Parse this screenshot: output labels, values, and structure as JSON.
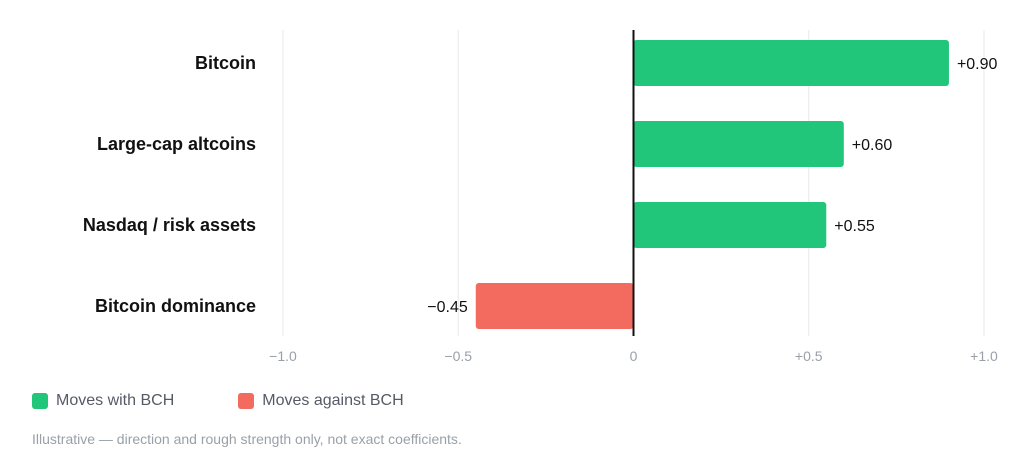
{
  "chart_data": {
    "type": "bar",
    "orientation": "horizontal",
    "categories": [
      "Bitcoin",
      "Large-cap altcoins",
      "Nasdaq / risk assets",
      "Bitcoin dominance"
    ],
    "values": [
      0.9,
      0.6,
      0.55,
      -0.45
    ],
    "value_labels": [
      "+0.90",
      "+0.60",
      "+0.55",
      "−0.45"
    ],
    "xlim": [
      -1.0,
      1.0
    ],
    "xticks": [
      -1.0,
      -0.5,
      0,
      0.5,
      1.0
    ],
    "xtick_labels": [
      "−1.0",
      "−0.5",
      "0",
      "+0.5",
      "+1.0"
    ],
    "grid": true,
    "colors": {
      "positive": "#22c67a",
      "negative": "#f26b5e"
    },
    "legend": [
      {
        "label": "Moves with BCH",
        "color": "#22c67a"
      },
      {
        "label": "Moves against BCH",
        "color": "#f26b5e"
      }
    ],
    "legend_position": "bottom-left"
  },
  "footnote": "Illustrative — direction and rough strength only, not exact coefficients."
}
